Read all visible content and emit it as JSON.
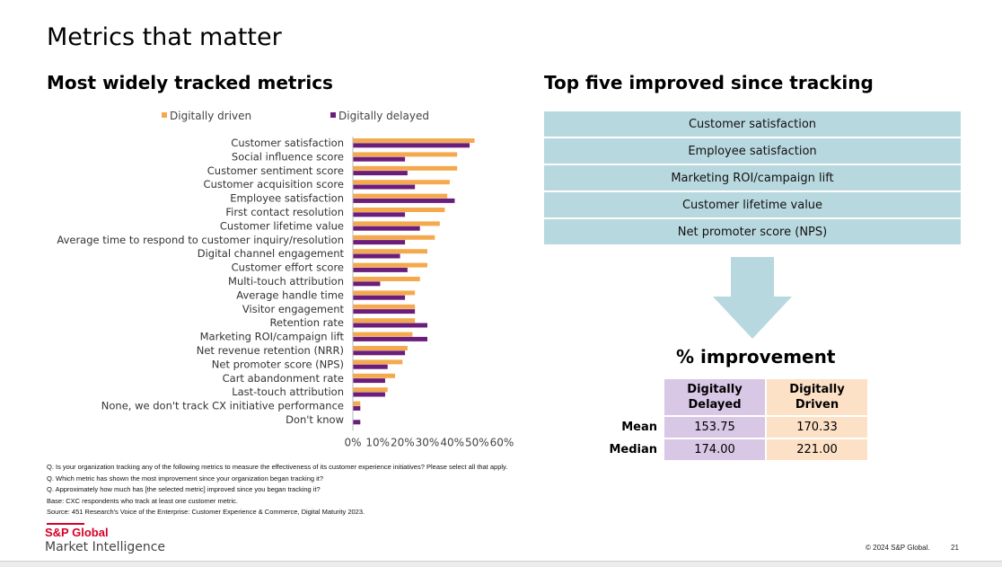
{
  "page": {
    "title": "Metrics that matter",
    "left_title": "Most widely tracked metrics",
    "right_title": "Top five improved since tracking",
    "improvement_title": "% improvement"
  },
  "colors": {
    "driven": "#f5a94e",
    "delayed": "#6b1d7a",
    "box": "#b8d8df"
  },
  "chart_data": {
    "type": "bar",
    "orientation": "horizontal",
    "categories": [
      "Customer satisfaction",
      "Social influence score",
      "Customer sentiment score",
      "Customer acquisition score",
      "Employee satisfaction",
      "First contact resolution",
      "Customer lifetime value",
      "Average time to respond to customer inquiry/resolution",
      "Digital channel engagement",
      "Customer effort score",
      "Multi-touch attribution",
      "Average handle time",
      "Visitor engagement",
      "Retention rate",
      "Marketing ROI/campaign lift",
      "Net revenue retention (NRR)",
      "Net promoter score (NPS)",
      "Cart abandonment rate",
      "Last-touch attribution",
      "None, we don't track CX initiative performance",
      "Don't know"
    ],
    "series": [
      {
        "name": "Digitally driven",
        "values": [
          49,
          42,
          42,
          39,
          38,
          37,
          35,
          33,
          30,
          30,
          27,
          25,
          25,
          25,
          24,
          22,
          20,
          17,
          14,
          3,
          0
        ]
      },
      {
        "name": "Digitally delayed",
        "values": [
          47,
          21,
          22,
          25,
          41,
          21,
          27,
          21,
          19,
          22,
          11,
          21,
          25,
          30,
          30,
          21,
          14,
          13,
          13,
          3,
          3
        ]
      }
    ],
    "xlim": [
      0,
      60
    ],
    "xticks": [
      "0%",
      "10%",
      "20%",
      "30%",
      "40%",
      "50%",
      "60%"
    ],
    "legend": [
      "Digitally driven",
      "Digitally delayed"
    ],
    "legend_position": "top"
  },
  "top5": [
    "Customer satisfaction",
    "Employee satisfaction",
    "Marketing ROI/campaign lift",
    "Customer lifetime value",
    "Net promoter score (NPS)"
  ],
  "improvement": {
    "headers": [
      "Digitally Delayed",
      "Digitally Driven"
    ],
    "rows": [
      {
        "label": "Mean",
        "delayed": "153.75",
        "driven": "170.33"
      },
      {
        "label": "Median",
        "delayed": "174.00",
        "driven": "221.00"
      }
    ]
  },
  "footnotes": [
    "Q. Is your organization tracking any of the following metrics to measure the effectiveness of its customer experience initiatives? Please select all that apply.",
    "Q. Which metric has shown the most improvement since your organization began tracking it?",
    "Q. Approximately how much has [the selected metric] improved since you began tracking it?",
    "Base: CXC respondents who track at least one customer metric.",
    "Source: 451 Research's Voice of the Enterprise: Customer Experience & Commerce, Digital Maturity 2023."
  ],
  "footer": {
    "logo_top": "S&P Global",
    "logo_bottom": "Market Intelligence",
    "copyright": "© 2024 S&P Global.",
    "page_number": "21"
  }
}
